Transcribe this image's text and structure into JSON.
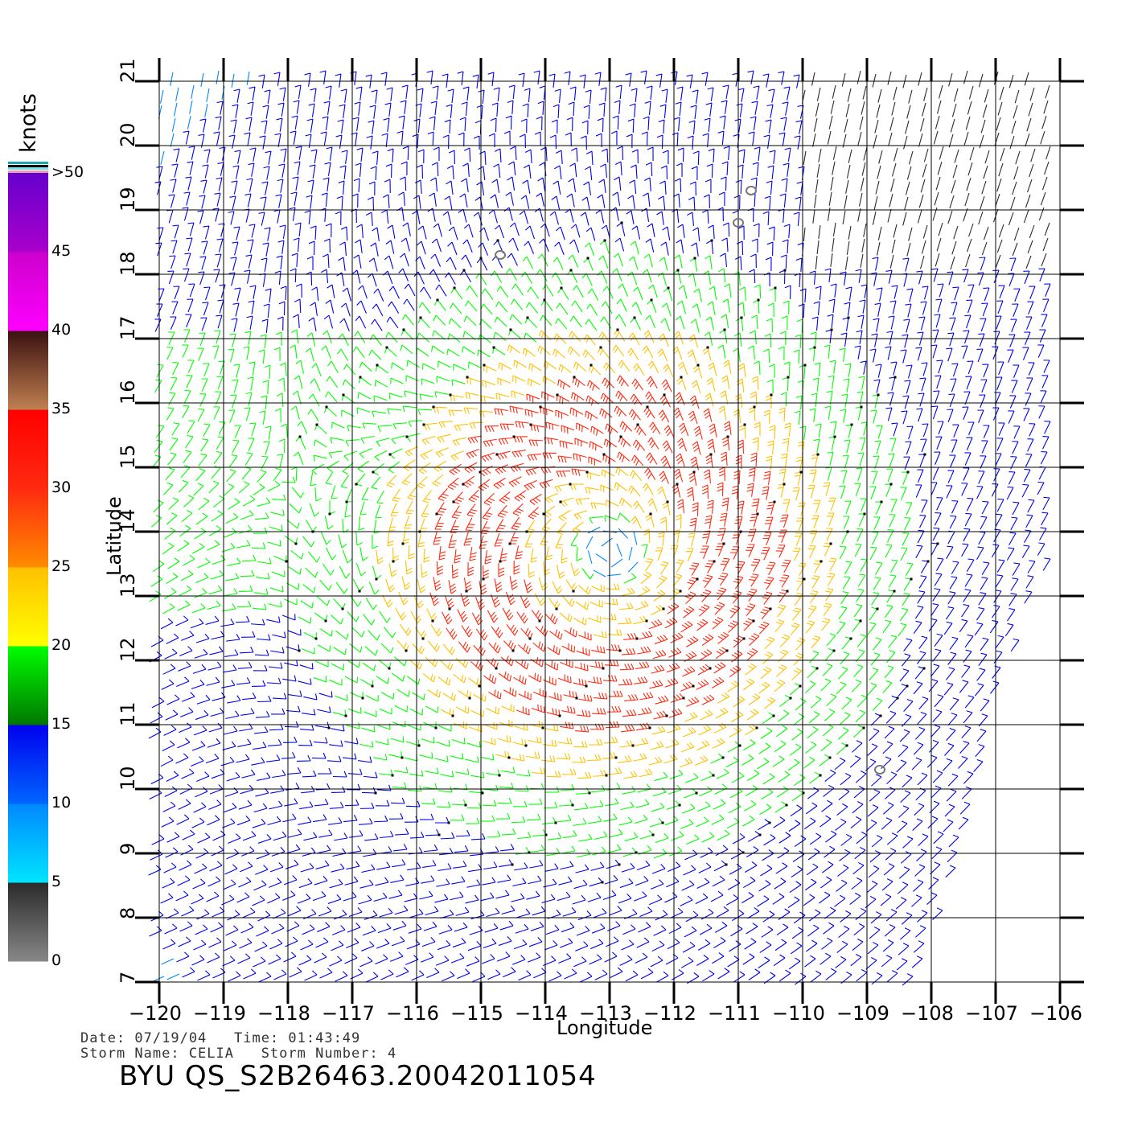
{
  "units_label": "knots",
  "legend": {
    "ticks": [
      "0",
      "5",
      "10",
      "15",
      "20",
      "25",
      "30",
      "35",
      "40",
      "45",
      ">50"
    ],
    "colors": {
      "0-5": [
        "#888888",
        "#2a2a2a"
      ],
      "5-10": [
        "#00e5ff",
        "#0088ff"
      ],
      "10-15": [
        "#0066ff",
        "#0000ee"
      ],
      "15-20": [
        "#007700",
        "#00ff00"
      ],
      "20-25": [
        "#ffff00",
        "#ffc000"
      ],
      "25-30": [
        "#ff8c00",
        "#ff2a10"
      ],
      "30-35": [
        "#ff2a10",
        "#ff0000"
      ],
      "35-40": [
        "#c08050",
        "#3a1010"
      ],
      "40-45": [
        "#ff00ff",
        "#cc00cc"
      ],
      "45-50": [
        "#aa00cc",
        "#6600cc"
      ]
    }
  },
  "map": {
    "x_axis_label": "Longitude",
    "y_axis_label": "Latitude",
    "lon_range": [
      -120,
      -106
    ],
    "lat_range": [
      7,
      21
    ],
    "lon_ticks": [
      "-120",
      "-119",
      "-118",
      "-117",
      "-116",
      "-115",
      "-114",
      "-113",
      "-112",
      "-111",
      "-110",
      "-109",
      "-108",
      "-107",
      "-106"
    ],
    "lat_ticks": [
      "7",
      "8",
      "9",
      "10",
      "11",
      "12",
      "13",
      "14",
      "15",
      "16",
      "17",
      "18",
      "19",
      "20",
      "21"
    ],
    "grid": true,
    "storm_center": [
      -113.0,
      13.7
    ],
    "island_markers": [
      [
        -114.7,
        18.3
      ],
      [
        -111.0,
        18.8
      ],
      [
        -110.8,
        19.3
      ],
      [
        -108.8,
        10.3
      ]
    ]
  },
  "footer": {
    "date_line": "Date: 07/19/04   Time: 01:43:49",
    "storm_line": "Storm Name: CELIA   Storm Number: 4",
    "product": "BYU QS_S2B26463.20042011054"
  }
}
